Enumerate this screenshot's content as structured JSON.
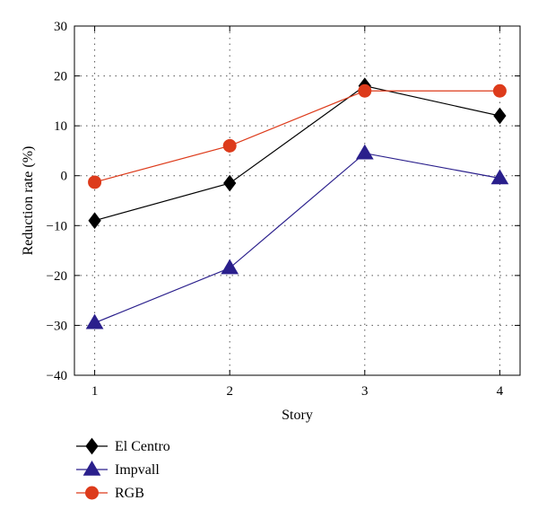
{
  "chart_data": {
    "type": "line",
    "title": "",
    "xlabel": "Story",
    "ylabel": "Reduction rate (%)",
    "x": [
      1,
      2,
      3,
      4
    ],
    "xticks": [
      "1",
      "2",
      "3",
      "4"
    ],
    "xlim": [
      0.85,
      4.15
    ],
    "ylim": [
      -40,
      30
    ],
    "yticks": [
      "30",
      "20",
      "10",
      "0",
      "-10",
      "-20",
      "-30",
      "-40"
    ],
    "grid": true,
    "legend_position": "bottom-left, below the plot",
    "series": [
      {
        "name": "El Centro",
        "values": [
          -9,
          -1.5,
          18,
          12
        ],
        "color": "#000000",
        "marker": "diamond"
      },
      {
        "name": "Impvall",
        "values": [
          -29.5,
          -18.5,
          4.5,
          -0.5
        ],
        "color": "#2a1f8c",
        "marker": "triangle"
      },
      {
        "name": "RGB",
        "values": [
          -1.3,
          6,
          17,
          17
        ],
        "color": "#dd3b1b",
        "marker": "circle"
      }
    ]
  }
}
